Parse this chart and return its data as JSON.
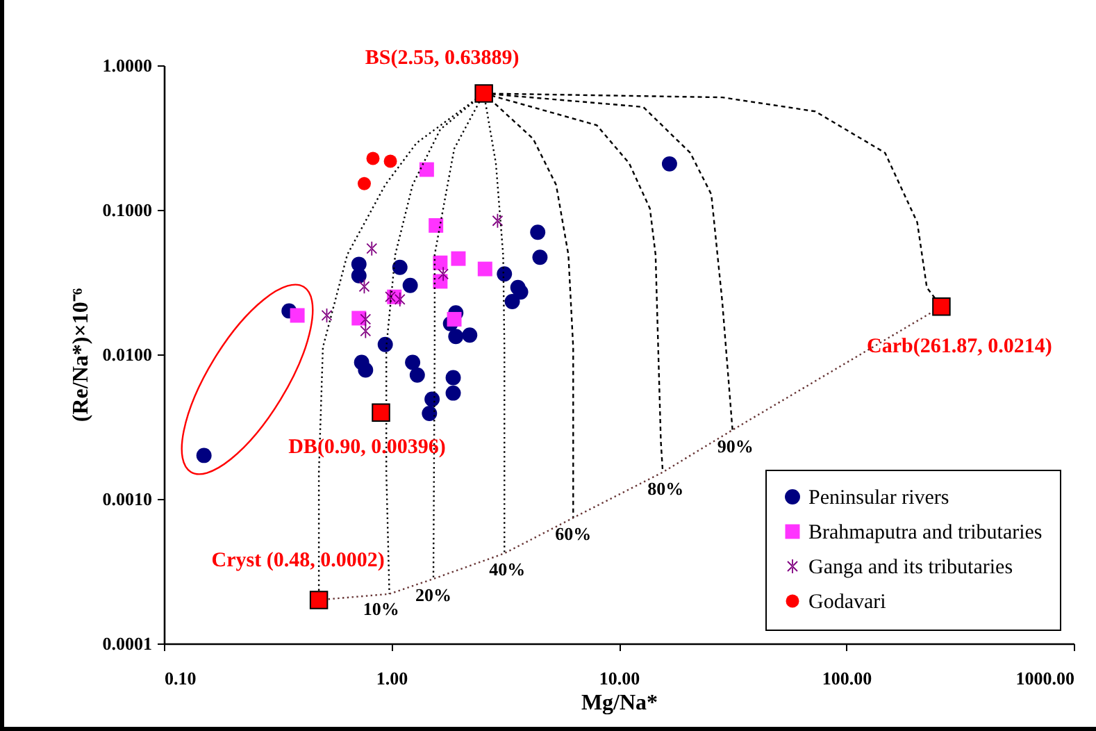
{
  "chart_data": {
    "type": "scatter",
    "xlabel": "Mg/Na*",
    "ylabel": "(Re/Na*)×10⁻⁶",
    "log": "xy",
    "xlim": [
      0.1,
      1000
    ],
    "ylim": [
      0.0001,
      1
    ],
    "xticks": [
      {
        "value": 0.1,
        "label": "0.10"
      },
      {
        "value": 1,
        "label": "1.00"
      },
      {
        "value": 10,
        "label": "10.00"
      },
      {
        "value": 100,
        "label": "100.00"
      },
      {
        "value": 1000,
        "label": "1000.00"
      }
    ],
    "yticks": [
      {
        "value": 0.0001,
        "label": "0.0001"
      },
      {
        "value": 0.001,
        "label": "0.0010"
      },
      {
        "value": 0.01,
        "label": "0.0100"
      },
      {
        "value": 0.1,
        "label": "0.1000"
      },
      {
        "value": 1,
        "label": "1.0000"
      }
    ],
    "legend": "bottom right",
    "series": [
      {
        "name": "Peninsular rivers",
        "color": "#000080",
        "marker": "circle",
        "x": [
          0.15,
          0.355,
          0.72,
          0.72,
          1.09,
          1.21,
          0.94,
          0.74,
          0.77,
          1.24,
          1.3,
          1.87,
          1.87,
          1.51,
          1.47,
          1.92,
          1.82,
          1.92,
          2.21,
          3.14,
          3.6,
          3.4,
          3.7,
          4.4,
          4.5,
          16.7
        ],
        "values": [
          0.002,
          0.02,
          0.042,
          0.035,
          0.04,
          0.03,
          0.0117,
          0.0088,
          0.0078,
          0.0088,
          0.0072,
          0.0069,
          0.0054,
          0.0049,
          0.0039,
          0.0194,
          0.0163,
          0.0133,
          0.0136,
          0.036,
          0.029,
          0.0232,
          0.027,
          0.07,
          0.047,
          0.208
        ]
      },
      {
        "name": "Brahmaputra and tributaries",
        "color": "#ff33ff",
        "marker": "square",
        "x": [
          0.386,
          1.43,
          1.57,
          1.64,
          1.64,
          1.97,
          2.58,
          1.03,
          0.72,
          1.89
        ],
        "values": [
          0.0186,
          0.19,
          0.078,
          0.043,
          0.032,
          0.046,
          0.039,
          0.025,
          0.0178,
          0.0175
        ]
      },
      {
        "name": "Ganga and its tributaries",
        "color": "#800080",
        "marker": "cross",
        "x": [
          0.82,
          0.52,
          0.76,
          0.99,
          1.09,
          0.77,
          0.77,
          1.69,
          2.93
        ],
        "values": [
          0.054,
          0.0186,
          0.0295,
          0.025,
          0.024,
          0.0175,
          0.0145,
          0.036,
          0.084
        ]
      },
      {
        "name": "Godavari",
        "color": "#ff0000",
        "marker": "circle",
        "x": [
          0.83,
          0.99,
          0.76
        ],
        "values": [
          0.227,
          0.217,
          0.152
        ]
      },
      {
        "color": "#ff0000",
        "marker": "square",
        "x": [
          2.55,
          261.87,
          0.9,
          0.48
        ],
        "values": [
          0.63889,
          0.0214,
          0.00396,
          0.0002
        ]
      },
      {
        "type": "line",
        "color": "#000000",
        "line_style": "dotted",
        "x": [
          2.55,
          1.29,
          0.94,
          0.64,
          0.5,
          0.48,
          0.48
        ],
        "values": [
          0.63889,
          0.29,
          0.149,
          0.049,
          0.0112,
          0.00153,
          0.0002
        ]
      },
      {
        "type": "line",
        "color": "#000000",
        "line_style": "dotted",
        "x": [
          2.55,
          1.64,
          1.24,
          1.04,
          0.95,
          0.95,
          0.98
        ],
        "values": [
          0.63889,
          0.36,
          0.149,
          0.049,
          0.0112,
          0.00153,
          0.00022
        ]
      },
      {
        "type": "line",
        "color": "#000000",
        "line_style": "dotted",
        "x": [
          2.55,
          1.89,
          1.55,
          1.55,
          1.53
        ],
        "values": [
          0.63889,
          0.265,
          0.049,
          0.0112,
          0.00028
        ]
      },
      {
        "type": "line",
        "color": "#000000",
        "line_style": "dotted",
        "x": [
          2.55,
          2.88,
          3.1,
          3.14,
          3.14,
          3.14
        ],
        "values": [
          0.63889,
          0.21,
          0.049,
          0.0112,
          0.00153,
          0.00042
        ]
      },
      {
        "type": "line",
        "color": "#000000",
        "line_style": "dashed",
        "x": [
          2.55,
          4.2,
          5.3,
          6.0,
          6.3,
          6.3,
          6.3
        ],
        "values": [
          0.63889,
          0.31,
          0.149,
          0.049,
          0.0112,
          0.00153,
          0.00074
        ]
      },
      {
        "type": "line",
        "color": "#000000",
        "line_style": "dashed",
        "x": [
          2.55,
          8.0,
          11.1,
          13.7,
          14.5,
          15.3,
          15.6
        ],
        "values": [
          0.63889,
          0.385,
          0.21,
          0.102,
          0.049,
          0.0025,
          0.00153
        ]
      },
      {
        "type": "line",
        "color": "#000000",
        "line_style": "dashed",
        "x": [
          2.55,
          12.8,
          20.6,
          25.5,
          28.5,
          31.6
        ],
        "values": [
          0.63889,
          0.515,
          0.248,
          0.128,
          0.023,
          0.003
        ]
      },
      {
        "type": "line",
        "color": "#000000",
        "line_style": "dashed",
        "x": [
          2.55,
          28.5,
          73,
          148,
          205,
          226,
          261.87
        ],
        "values": [
          0.63889,
          0.6,
          0.48,
          0.248,
          0.082,
          0.029,
          0.0214
        ]
      },
      {
        "type": "line",
        "color": "#663333",
        "line_style": "dotted",
        "x": [
          0.48,
          0.98,
          1.53,
          3.14,
          6.3,
          15.6,
          31.6,
          261.87
        ],
        "values": [
          0.0002,
          0.00022,
          0.00028,
          0.00042,
          0.00074,
          0.00153,
          0.003,
          0.0214
        ]
      }
    ],
    "annotations": [
      {
        "text": "BS(2.55, 0.63889)",
        "x": 2.55,
        "y": 0.63889
      },
      {
        "text": "Carb(261.87, 0.0214)",
        "x": 261.87,
        "y": 0.0214
      },
      {
        "text": "DB(0.90, 0.00396)",
        "x": 0.9,
        "y": 0.00396
      },
      {
        "text": "Cryst (0.48, 0.0002)",
        "x": 0.48,
        "y": 0.0002
      },
      {
        "text": "10%",
        "x": 0.98,
        "y": 0.00022
      },
      {
        "text": "20%",
        "x": 1.53,
        "y": 0.00028
      },
      {
        "text": "40%",
        "x": 3.14,
        "y": 0.00042
      },
      {
        "text": "60%",
        "x": 6.3,
        "y": 0.00074
      },
      {
        "text": "80%",
        "x": 15.6,
        "y": 0.00153
      },
      {
        "text": "90%",
        "x": 31.6,
        "y": 0.003
      }
    ]
  }
}
